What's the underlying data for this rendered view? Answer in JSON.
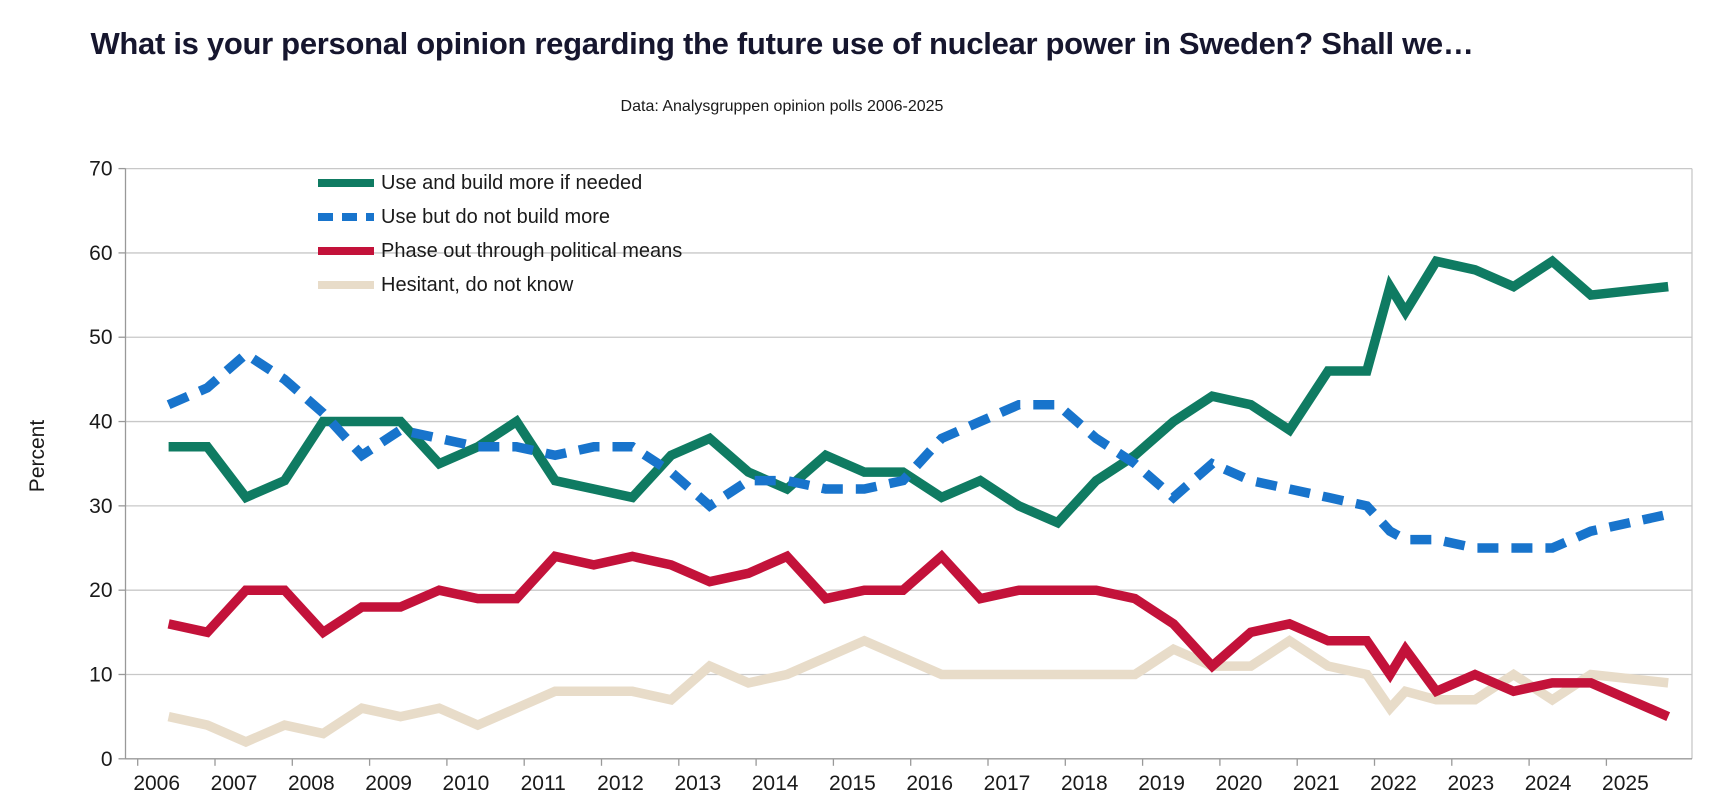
{
  "title": "What is your personal opinion regarding the future use of nuclear power in Sweden? Shall we…",
  "subtitle": "Data: Analysgruppen opinion polls 2006-2025",
  "chart_data": {
    "type": "line",
    "title": "What is your personal opinion regarding the future use of nuclear power in Sweden? Shall we…",
    "subtitle": "Data: Analysgruppen opinion polls 2006-2025",
    "xlabel": "",
    "ylabel": "Percent",
    "ylim": [
      0,
      70
    ],
    "yticks": [
      0,
      10,
      20,
      30,
      40,
      50,
      60,
      70
    ],
    "xticks": [
      2006,
      2007,
      2008,
      2009,
      2010,
      2011,
      2012,
      2013,
      2014,
      2015,
      2016,
      2017,
      2018,
      2019,
      2020,
      2021,
      2022,
      2023,
      2024,
      2025
    ],
    "grid": "horizontal",
    "legend_position": "inside-top-left",
    "x": [
      2006.4,
      2006.9,
      2007.4,
      2007.9,
      2008.4,
      2008.9,
      2009.4,
      2009.9,
      2010.4,
      2010.9,
      2011.4,
      2011.9,
      2012.4,
      2012.9,
      2013.4,
      2013.9,
      2014.4,
      2014.9,
      2015.4,
      2015.9,
      2016.4,
      2016.9,
      2017.4,
      2017.9,
      2018.4,
      2018.9,
      2019.4,
      2019.9,
      2020.4,
      2020.9,
      2021.4,
      2021.9,
      2022.2,
      2022.4,
      2022.8,
      2023.3,
      2023.8,
      2024.3,
      2024.8,
      2025.8
    ],
    "series": [
      {
        "name": "Use and build more if needed",
        "color": "#0f7b62",
        "style": "solid",
        "values": [
          37,
          37,
          31,
          33,
          40,
          40,
          40,
          35,
          37,
          40,
          33,
          32,
          31,
          36,
          38,
          34,
          32,
          36,
          34,
          34,
          31,
          33,
          30,
          28,
          33,
          36,
          40,
          43,
          42,
          39,
          46,
          46,
          56,
          53,
          59,
          58,
          56,
          59,
          55,
          56
        ]
      },
      {
        "name": "Use but do not build more",
        "color": "#1874cc",
        "style": "dashed",
        "values": [
          42,
          44,
          48,
          45,
          41,
          36,
          39,
          38,
          37,
          37,
          36,
          37,
          37,
          34,
          30,
          33,
          33,
          32,
          32,
          33,
          38,
          40,
          42,
          42,
          38,
          35,
          31,
          35,
          33,
          32,
          31,
          30,
          27,
          26,
          26,
          25,
          25,
          25,
          27,
          29
        ]
      },
      {
        "name": "Phase out through political means",
        "color": "#c3123a",
        "style": "solid",
        "values": [
          16,
          15,
          20,
          20,
          15,
          18,
          18,
          20,
          19,
          19,
          24,
          23,
          24,
          23,
          21,
          22,
          24,
          19,
          20,
          20,
          24,
          19,
          20,
          20,
          20,
          19,
          16,
          11,
          15,
          16,
          14,
          14,
          10,
          13,
          8,
          10,
          8,
          9,
          9,
          5
        ]
      },
      {
        "name": "Hesitant, do not know",
        "color": "#e8dcc9",
        "style": "solid",
        "values": [
          5,
          4,
          2,
          4,
          3,
          6,
          5,
          6,
          4,
          6,
          8,
          8,
          8,
          7,
          11,
          9,
          10,
          12,
          14,
          12,
          10,
          10,
          10,
          10,
          10,
          10,
          13,
          11,
          11,
          14,
          11,
          10,
          6,
          8,
          7,
          7,
          10,
          7,
          10,
          9
        ]
      }
    ],
    "colors": {
      "grid": "#c8c8c8",
      "axis": "#999999",
      "tick_text": "#1a1a1a",
      "title_text": "#16162e"
    }
  }
}
